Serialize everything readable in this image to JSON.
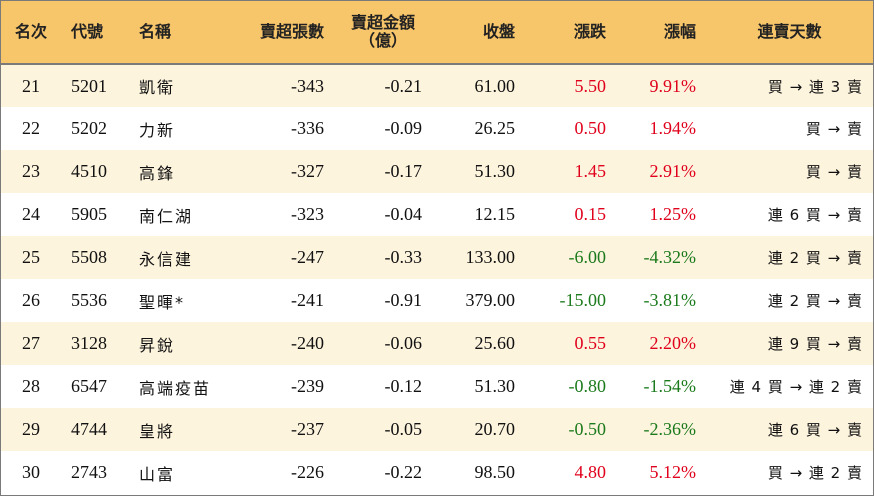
{
  "headers": {
    "rank": "名次",
    "code": "代號",
    "name": "名稱",
    "net_sell_lots": "賣超張數",
    "net_sell_amount_line1": "賣超金額",
    "net_sell_amount_line2": "（億）",
    "close": "收盤",
    "change": "漲跌",
    "pct": "漲幅",
    "streak": "連賣天數"
  },
  "rows": [
    {
      "rank": "21",
      "code": "5201",
      "name": "凱衛",
      "lots": "-343",
      "amount": "-0.21",
      "close": "61.00",
      "change": "5.50",
      "pct": "9.91%",
      "dir": "up",
      "streak": "買 → 連 3 賣"
    },
    {
      "rank": "22",
      "code": "5202",
      "name": "力新",
      "lots": "-336",
      "amount": "-0.09",
      "close": "26.25",
      "change": "0.50",
      "pct": "1.94%",
      "dir": "up",
      "streak": "買 → 賣"
    },
    {
      "rank": "23",
      "code": "4510",
      "name": "高鋒",
      "lots": "-327",
      "amount": "-0.17",
      "close": "51.30",
      "change": "1.45",
      "pct": "2.91%",
      "dir": "up",
      "streak": "買 → 賣"
    },
    {
      "rank": "24",
      "code": "5905",
      "name": "南仁湖",
      "lots": "-323",
      "amount": "-0.04",
      "close": "12.15",
      "change": "0.15",
      "pct": "1.25%",
      "dir": "up",
      "streak": "連 6 買 → 賣"
    },
    {
      "rank": "25",
      "code": "5508",
      "name": "永信建",
      "lots": "-247",
      "amount": "-0.33",
      "close": "133.00",
      "change": "-6.00",
      "pct": "-4.32%",
      "dir": "down",
      "streak": "連 2 買 → 賣"
    },
    {
      "rank": "26",
      "code": "5536",
      "name": "聖暉*",
      "lots": "-241",
      "amount": "-0.91",
      "close": "379.00",
      "change": "-15.00",
      "pct": "-3.81%",
      "dir": "down",
      "streak": "連 2 買 → 賣"
    },
    {
      "rank": "27",
      "code": "3128",
      "name": "昇銳",
      "lots": "-240",
      "amount": "-0.06",
      "close": "25.60",
      "change": "0.55",
      "pct": "2.20%",
      "dir": "up",
      "streak": "連 9 買 → 賣"
    },
    {
      "rank": "28",
      "code": "6547",
      "name": "高端疫苗",
      "lots": "-239",
      "amount": "-0.12",
      "close": "51.30",
      "change": "-0.80",
      "pct": "-1.54%",
      "dir": "down",
      "streak": "連 4 買 → 連 2 賣"
    },
    {
      "rank": "29",
      "code": "4744",
      "name": "皇將",
      "lots": "-237",
      "amount": "-0.05",
      "close": "20.70",
      "change": "-0.50",
      "pct": "-2.36%",
      "dir": "down",
      "streak": "連 6 買 → 賣"
    },
    {
      "rank": "30",
      "code": "2743",
      "name": "山富",
      "lots": "-226",
      "amount": "-0.22",
      "close": "98.50",
      "change": "4.80",
      "pct": "5.12%",
      "dir": "up",
      "streak": "買 → 連 2 賣"
    }
  ],
  "colors": {
    "header_bg": "#f7c56a",
    "odd_row_bg": "#fdf4de",
    "up": "#e0001b",
    "down": "#1b7a1b"
  }
}
